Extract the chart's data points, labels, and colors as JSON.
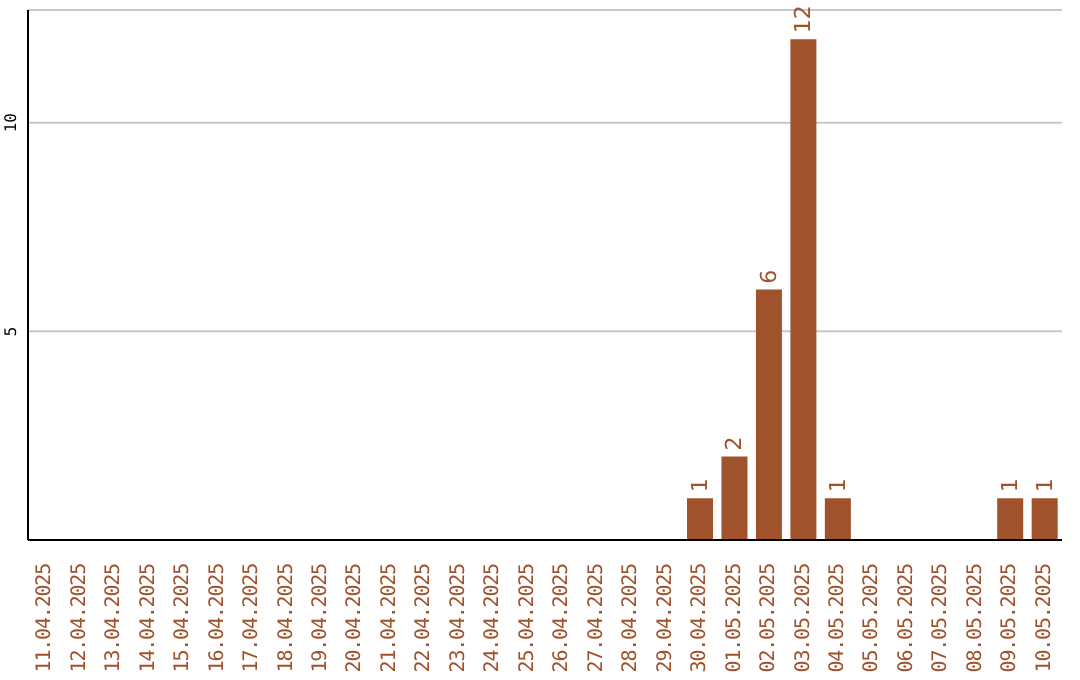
{
  "chart_data": {
    "type": "bar",
    "categories": [
      "11.04.2025",
      "12.04.2025",
      "13.04.2025",
      "14.04.2025",
      "15.04.2025",
      "16.04.2025",
      "17.04.2025",
      "18.04.2025",
      "19.04.2025",
      "20.04.2025",
      "21.04.2025",
      "22.04.2025",
      "23.04.2025",
      "24.04.2025",
      "25.04.2025",
      "26.04.2025",
      "27.04.2025",
      "28.04.2025",
      "29.04.2025",
      "30.04.2025",
      "01.05.2025",
      "02.05.2025",
      "03.05.2025",
      "04.05.2025",
      "05.05.2025",
      "06.05.2025",
      "07.05.2025",
      "08.05.2025",
      "09.05.2025",
      "10.05.2025"
    ],
    "values": [
      0,
      0,
      0,
      0,
      0,
      0,
      0,
      0,
      0,
      0,
      0,
      0,
      0,
      0,
      0,
      0,
      0,
      0,
      0,
      1,
      2,
      6,
      12,
      1,
      0,
      0,
      0,
      0,
      1,
      1
    ],
    "value_labels": [
      null,
      null,
      null,
      null,
      null,
      null,
      null,
      null,
      null,
      null,
      null,
      null,
      null,
      null,
      null,
      null,
      null,
      null,
      null,
      "1",
      "2",
      "6",
      "12",
      "1",
      null,
      null,
      null,
      null,
      "1",
      "1"
    ],
    "color": "#a0522d",
    "ylim": [
      0,
      12.7
    ],
    "yticks": [
      5,
      10
    ],
    "grid": "y"
  }
}
